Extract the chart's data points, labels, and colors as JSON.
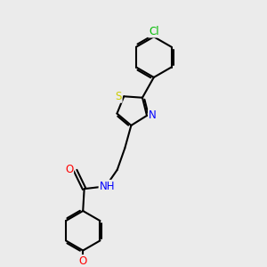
{
  "background_color": "#ebebeb",
  "bond_color": "#000000",
  "bond_width": 1.5,
  "atom_colors": {
    "C": "#000000",
    "N": "#0000ff",
    "O": "#ff0000",
    "S": "#cccc00",
    "Cl": "#00bb00",
    "H": "#000000"
  },
  "font_size": 8.5,
  "fig_width": 3.0,
  "fig_height": 3.0,
  "dpi": 100
}
